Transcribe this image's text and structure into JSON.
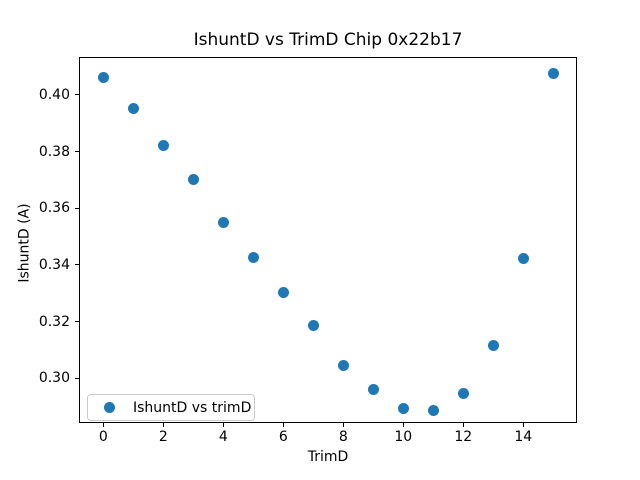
{
  "chart_data": {
    "type": "scatter",
    "title": "IshuntD vs TrimD Chip 0x22b17",
    "xlabel": "TrimD",
    "ylabel": "IshuntD (A)",
    "legend_entries": [
      "IshuntD vs trimD"
    ],
    "legend_position": "lower left",
    "marker_color": "#1f77b4",
    "grid": false,
    "x": [
      0,
      1,
      2,
      3,
      4,
      5,
      6,
      7,
      8,
      9,
      10,
      11,
      12,
      13,
      14,
      15
    ],
    "y": [
      0.4062,
      0.3953,
      0.382,
      0.3703,
      0.355,
      0.3427,
      0.3304,
      0.3186,
      0.3044,
      0.2961,
      0.2894,
      0.2886,
      0.2946,
      0.3114,
      0.3424,
      0.4074
    ],
    "xlim": [
      -0.81,
      15.79
    ],
    "ylim": [
      0.2842,
      0.4134
    ],
    "xticks": [
      0,
      2,
      4,
      6,
      8,
      10,
      12,
      14
    ],
    "xtick_labels": [
      "0",
      "2",
      "4",
      "6",
      "8",
      "10",
      "12",
      "14"
    ],
    "yticks": [
      0.3,
      0.32,
      0.34,
      0.36,
      0.38,
      0.4
    ],
    "ytick_labels": [
      "0.30",
      "0.32",
      "0.34",
      "0.36",
      "0.38",
      "0.40"
    ]
  }
}
